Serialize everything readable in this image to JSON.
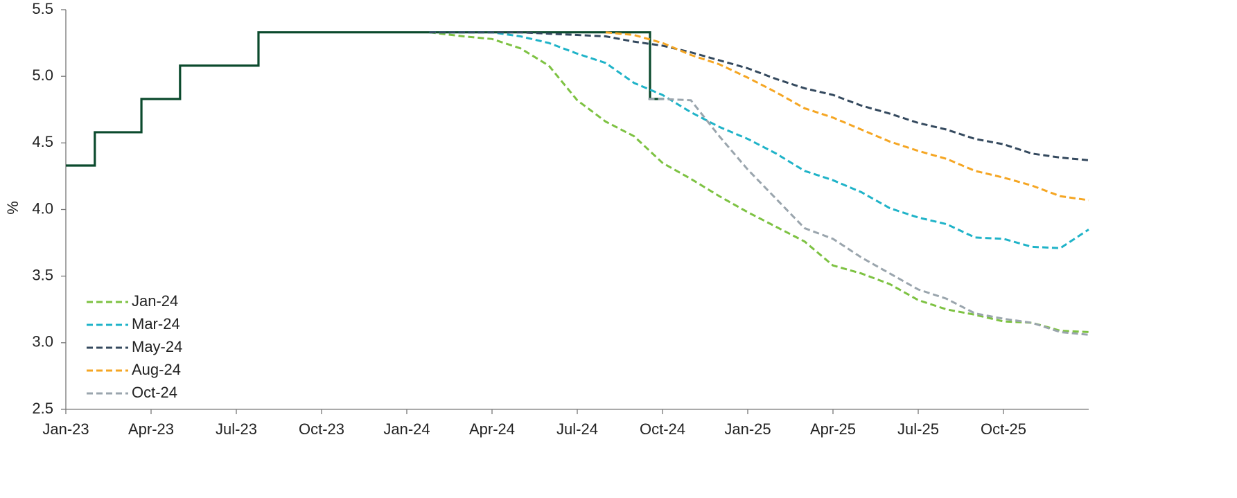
{
  "chart_data": {
    "type": "line",
    "y_label": "%",
    "xlim": [
      0,
      36
    ],
    "ylim": [
      2.5,
      5.5
    ],
    "xticks": [
      {
        "value": 0,
        "label": "Jan-23"
      },
      {
        "value": 3,
        "label": "Apr-23"
      },
      {
        "value": 6,
        "label": "Jul-23"
      },
      {
        "value": 9,
        "label": "Oct-23"
      },
      {
        "value": 12,
        "label": "Jan-24"
      },
      {
        "value": 15,
        "label": "Apr-24"
      },
      {
        "value": 18,
        "label": "Jul-24"
      },
      {
        "value": 21,
        "label": "Oct-24"
      },
      {
        "value": 24,
        "label": "Jan-25"
      },
      {
        "value": 27,
        "label": "Apr-25"
      },
      {
        "value": 30,
        "label": "Jul-25"
      },
      {
        "value": 33,
        "label": "Oct-25"
      }
    ],
    "yticks": [
      2.5,
      {
        "value": 3,
        "label": "3.0"
      },
      3.5,
      {
        "value": 4,
        "label": "4.0"
      },
      4.5,
      {
        "value": 5,
        "label": "5.0"
      },
      5.5
    ],
    "grid": false,
    "legend": "lower left",
    "series": [
      {
        "color": "#0b4a2d",
        "dashed": false,
        "x": [
          0,
          1.02,
          1.02,
          2.66,
          2.66,
          4.02,
          4.02,
          6.78,
          6.78,
          20.56,
          20.56,
          21.05
        ],
        "values": [
          4.33,
          4.33,
          4.58,
          4.58,
          4.83,
          4.83,
          5.08,
          5.08,
          5.33,
          5.33,
          4.83,
          4.83
        ]
      },
      {
        "name": "Jan-24",
        "color": "#7dc242",
        "dashed": true,
        "x": [
          12.8,
          14,
          15,
          16,
          17,
          18,
          19,
          20,
          21,
          22,
          23,
          24,
          25,
          26,
          27,
          28,
          29,
          30,
          31,
          32,
          33,
          34,
          35,
          36
        ],
        "values": [
          5.33,
          5.3,
          5.28,
          5.21,
          5.08,
          4.82,
          4.66,
          4.55,
          4.35,
          4.23,
          4.1,
          3.98,
          3.87,
          3.76,
          3.58,
          3.52,
          3.44,
          3.32,
          3.25,
          3.21,
          3.16,
          3.15,
          3.09,
          3.08
        ]
      },
      {
        "name": "Mar-24",
        "color": "#1fb3c8",
        "dashed": true,
        "x": [
          12.8,
          15,
          16,
          17,
          18,
          19,
          20,
          21,
          22,
          23,
          24,
          25,
          26,
          27,
          28,
          29,
          30,
          31,
          32,
          33,
          34,
          35,
          36
        ],
        "values": [
          5.33,
          5.33,
          5.3,
          5.25,
          5.17,
          5.1,
          4.95,
          4.86,
          4.73,
          4.62,
          4.53,
          4.42,
          4.29,
          4.22,
          4.13,
          4.01,
          3.94,
          3.89,
          3.79,
          3.78,
          3.72,
          3.71,
          3.85
        ]
      },
      {
        "name": "May-24",
        "color": "#34495e",
        "dashed": true,
        "x": [
          12.8,
          16,
          18,
          19,
          20,
          21,
          22,
          23,
          24,
          25,
          26,
          27,
          28,
          29,
          30,
          31,
          32,
          33,
          34,
          35,
          36
        ],
        "values": [
          5.33,
          5.33,
          5.31,
          5.3,
          5.26,
          5.23,
          5.18,
          5.12,
          5.06,
          4.98,
          4.91,
          4.86,
          4.78,
          4.72,
          4.65,
          4.6,
          4.53,
          4.49,
          4.42,
          4.39,
          4.37
        ]
      },
      {
        "name": "Aug-24",
        "color": "#f5a623",
        "dashed": true,
        "x": [
          19,
          20,
          21,
          22,
          23,
          24,
          25,
          26,
          27,
          28,
          29,
          30,
          31,
          32,
          33,
          34,
          35,
          36
        ],
        "values": [
          5.33,
          5.31,
          5.25,
          5.16,
          5.09,
          4.99,
          4.88,
          4.76,
          4.69,
          4.6,
          4.51,
          4.44,
          4.38,
          4.29,
          4.24,
          4.18,
          4.1,
          4.07
        ]
      },
      {
        "name": "Oct-24",
        "color": "#9aa5ad",
        "dashed": true,
        "x": [
          20.5,
          21,
          22,
          23,
          24,
          25,
          26,
          27,
          28,
          29,
          30,
          31,
          32,
          33,
          34,
          35,
          36
        ],
        "values": [
          4.83,
          4.83,
          4.82,
          4.55,
          4.3,
          4.08,
          3.86,
          3.78,
          3.64,
          3.52,
          3.4,
          3.33,
          3.22,
          3.18,
          3.15,
          3.08,
          3.06
        ]
      }
    ]
  }
}
